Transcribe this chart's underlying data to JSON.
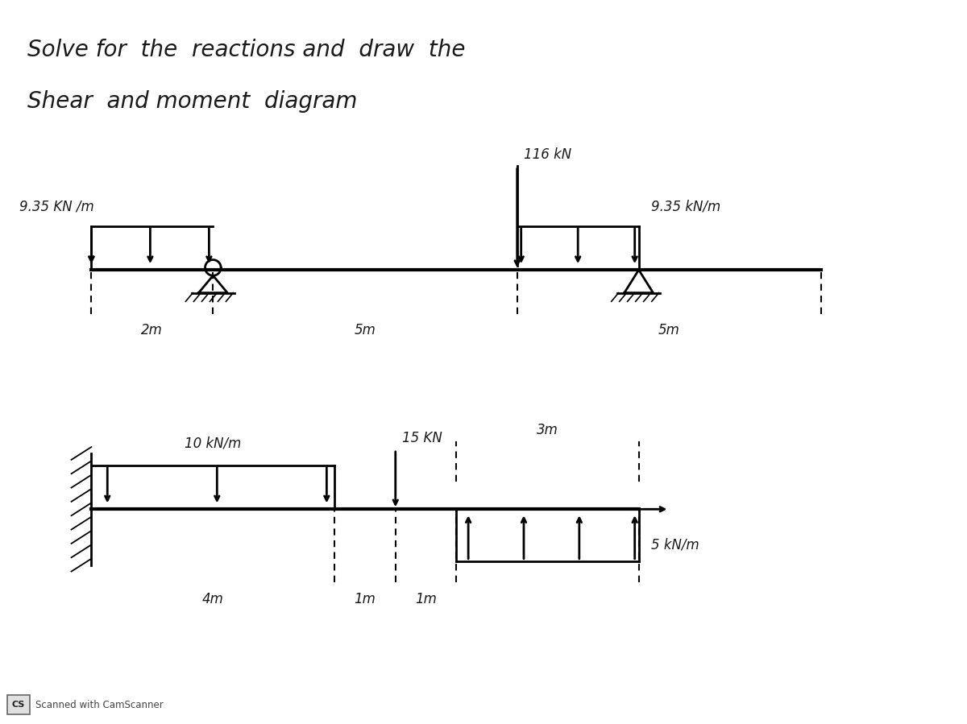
{
  "title_line1": "Solve for  the  reactions and  draw  the",
  "title_line2": "Shear  and moment  diagram",
  "bg_color": "#ffffff",
  "text_color": "#1a1a1a",
  "lw_beam": 3.0,
  "lw_load": 2.0,
  "lw_support": 2.0,
  "lw_dim": 1.5,
  "arrow_ms": 10,
  "camscanner_text": "Scanned with CamScanner"
}
